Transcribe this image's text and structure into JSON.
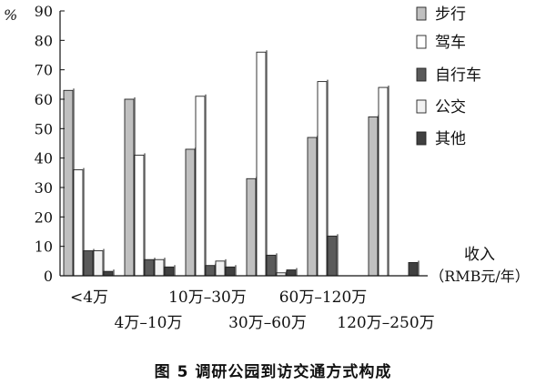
{
  "chart_data": {
    "type": "bar",
    "y_unit": "%",
    "ylim": [
      0,
      90
    ],
    "yticks": [
      0,
      10,
      20,
      30,
      40,
      50,
      60,
      70,
      80,
      90
    ],
    "grid": false,
    "legend_position": "right",
    "x_axis_label_line1": "收入",
    "x_axis_label_line2": "（RMB元/年）",
    "categories": [
      "<4万",
      "4万–10万",
      "10万–30万",
      "30万–60万",
      "60万–120万",
      "120万–250万"
    ],
    "series": [
      {
        "name": "步行",
        "color": "#c0c0c0",
        "values": [
          63,
          60,
          43,
          33,
          47,
          54
        ]
      },
      {
        "name": "驾车",
        "color": "#ffffff",
        "values": [
          36,
          41,
          61,
          76,
          66,
          64
        ]
      },
      {
        "name": "自行车",
        "color": "#5a5a5a",
        "values": [
          8.5,
          5.5,
          3.5,
          7,
          13.5,
          0
        ]
      },
      {
        "name": "公交",
        "color": "#f2f2f2",
        "values": [
          8.5,
          5.5,
          5,
          1,
          0,
          0
        ]
      },
      {
        "name": "其他",
        "color": "#404040",
        "values": [
          1.5,
          3,
          3,
          2,
          0,
          4.5
        ]
      }
    ],
    "caption": "图 5   调研公园到访交通方式构成"
  }
}
